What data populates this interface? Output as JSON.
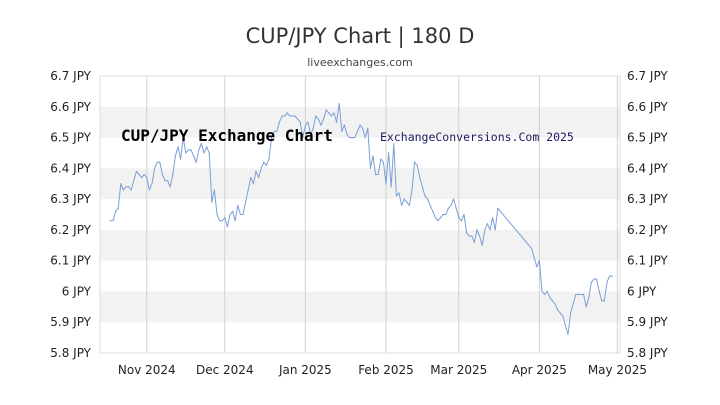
{
  "chart_data": {
    "type": "line",
    "title": "CUP/JPY Chart | 180 D",
    "subtitle": "liveexchanges.com",
    "ylim": [
      5.8,
      6.7
    ],
    "yticks": [
      {
        "value": 6.7,
        "label": "6.7 JPY"
      },
      {
        "value": 6.6,
        "label": "6.6 JPY"
      },
      {
        "value": 6.5,
        "label": "6.5 JPY"
      },
      {
        "value": 6.4,
        "label": "6.4 JPY"
      },
      {
        "value": 6.3,
        "label": "6.3 JPY"
      },
      {
        "value": 6.2,
        "label": "6.2 JPY"
      },
      {
        "value": 6.1,
        "label": "6.1 JPY"
      },
      {
        "value": 6.0,
        "label": "6 JPY"
      },
      {
        "value": 5.9,
        "label": "5.9 JPY"
      },
      {
        "value": 5.8,
        "label": "5.8 JPY"
      }
    ],
    "xticks": [
      {
        "date": "2024-11-01",
        "label": "Nov 2024"
      },
      {
        "date": "2024-12-01",
        "label": "Dec 2024"
      },
      {
        "date": "2025-01-01",
        "label": "Jan 2025"
      },
      {
        "date": "2025-02-01",
        "label": "Feb 2025"
      },
      {
        "date": "2025-03-01",
        "label": "Mar 2025"
      },
      {
        "date": "2025-04-01",
        "label": "Apr 2025"
      },
      {
        "date": "2025-05-01",
        "label": "May 2025"
      }
    ],
    "grid": true,
    "annotations": [
      "CUP/JPY Exchange Chart",
      "ExchangeConversions.Com 2025"
    ],
    "series": [
      {
        "color": "#7b9fd6",
        "points": [
          [
            "2024-10-18",
            6.23
          ],
          [
            "2024-10-19",
            6.23
          ],
          [
            "2024-10-20",
            6.26
          ],
          [
            "2024-10-21",
            6.27
          ],
          [
            "2024-10-22",
            6.35
          ],
          [
            "2024-10-23",
            6.33
          ],
          [
            "2024-10-24",
            6.34
          ],
          [
            "2024-10-25",
            6.34
          ],
          [
            "2024-10-26",
            6.33
          ],
          [
            "2024-10-27",
            6.36
          ],
          [
            "2024-10-28",
            6.39
          ],
          [
            "2024-10-29",
            6.38
          ],
          [
            "2024-10-30",
            6.37
          ],
          [
            "2024-10-31",
            6.38
          ],
          [
            "2024-11-01",
            6.37
          ],
          [
            "2024-11-02",
            6.33
          ],
          [
            "2024-11-03",
            6.35
          ],
          [
            "2024-11-04",
            6.4
          ],
          [
            "2024-11-05",
            6.42
          ],
          [
            "2024-11-06",
            6.42
          ],
          [
            "2024-11-07",
            6.38
          ],
          [
            "2024-11-08",
            6.36
          ],
          [
            "2024-11-09",
            6.36
          ],
          [
            "2024-11-10",
            6.34
          ],
          [
            "2024-11-11",
            6.38
          ],
          [
            "2024-11-12",
            6.44
          ],
          [
            "2024-11-13",
            6.47
          ],
          [
            "2024-11-14",
            6.43
          ],
          [
            "2024-11-15",
            6.5
          ],
          [
            "2024-11-16",
            6.45
          ],
          [
            "2024-11-17",
            6.46
          ],
          [
            "2024-11-18",
            6.46
          ],
          [
            "2024-11-19",
            6.44
          ],
          [
            "2024-11-20",
            6.42
          ],
          [
            "2024-11-21",
            6.46
          ],
          [
            "2024-11-22",
            6.48
          ],
          [
            "2024-11-23",
            6.45
          ],
          [
            "2024-11-24",
            6.47
          ],
          [
            "2024-11-25",
            6.45
          ],
          [
            "2024-11-26",
            6.29
          ],
          [
            "2024-11-27",
            6.33
          ],
          [
            "2024-11-28",
            6.25
          ],
          [
            "2024-11-29",
            6.23
          ],
          [
            "2024-11-30",
            6.23
          ],
          [
            "2024-12-01",
            6.24
          ],
          [
            "2024-12-02",
            6.21
          ],
          [
            "2024-12-03",
            6.25
          ],
          [
            "2024-12-04",
            6.26
          ],
          [
            "2024-12-05",
            6.23
          ],
          [
            "2024-12-06",
            6.28
          ],
          [
            "2024-12-07",
            6.25
          ],
          [
            "2024-12-08",
            6.25
          ],
          [
            "2024-12-09",
            6.29
          ],
          [
            "2024-12-10",
            6.33
          ],
          [
            "2024-12-11",
            6.37
          ],
          [
            "2024-12-12",
            6.35
          ],
          [
            "2024-12-13",
            6.39
          ],
          [
            "2024-12-14",
            6.37
          ],
          [
            "2024-12-15",
            6.4
          ],
          [
            "2024-12-16",
            6.42
          ],
          [
            "2024-12-17",
            6.41
          ],
          [
            "2024-12-18",
            6.43
          ],
          [
            "2024-12-19",
            6.5
          ],
          [
            "2024-12-20",
            6.52
          ],
          [
            "2024-12-21",
            6.52
          ],
          [
            "2024-12-22",
            6.55
          ],
          [
            "2024-12-23",
            6.57
          ],
          [
            "2024-12-24",
            6.57
          ],
          [
            "2024-12-25",
            6.58
          ],
          [
            "2024-12-26",
            6.57
          ],
          [
            "2024-12-27",
            6.57
          ],
          [
            "2024-12-28",
            6.57
          ],
          [
            "2024-12-29",
            6.56
          ],
          [
            "2024-12-30",
            6.55
          ],
          [
            "2024-12-31",
            6.5
          ],
          [
            "2025-01-01",
            6.54
          ],
          [
            "2025-01-02",
            6.55
          ],
          [
            "2025-01-03",
            6.51
          ],
          [
            "2025-01-04",
            6.53
          ],
          [
            "2025-01-05",
            6.57
          ],
          [
            "2025-01-06",
            6.56
          ],
          [
            "2025-01-07",
            6.54
          ],
          [
            "2025-01-08",
            6.56
          ],
          [
            "2025-01-09",
            6.59
          ],
          [
            "2025-01-10",
            6.58
          ],
          [
            "2025-01-11",
            6.57
          ],
          [
            "2025-01-12",
            6.58
          ],
          [
            "2025-01-13",
            6.55
          ],
          [
            "2025-01-14",
            6.61
          ],
          [
            "2025-01-15",
            6.52
          ],
          [
            "2025-01-16",
            6.54
          ],
          [
            "2025-01-17",
            6.51
          ],
          [
            "2025-01-18",
            6.5
          ],
          [
            "2025-01-19",
            6.5
          ],
          [
            "2025-01-20",
            6.5
          ],
          [
            "2025-01-21",
            6.52
          ],
          [
            "2025-01-22",
            6.54
          ],
          [
            "2025-01-23",
            6.53
          ],
          [
            "2025-01-24",
            6.5
          ],
          [
            "2025-01-25",
            6.53
          ],
          [
            "2025-01-26",
            6.4
          ],
          [
            "2025-01-27",
            6.44
          ],
          [
            "2025-01-28",
            6.38
          ],
          [
            "2025-01-29",
            6.38
          ],
          [
            "2025-01-30",
            6.43
          ],
          [
            "2025-01-31",
            6.42
          ],
          [
            "2025-02-01",
            6.35
          ],
          [
            "2025-02-02",
            6.45
          ],
          [
            "2025-02-03",
            6.34
          ],
          [
            "2025-02-04",
            6.48
          ],
          [
            "2025-02-05",
            6.31
          ],
          [
            "2025-02-06",
            6.32
          ],
          [
            "2025-02-07",
            6.28
          ],
          [
            "2025-02-08",
            6.3
          ],
          [
            "2025-02-09",
            6.29
          ],
          [
            "2025-02-10",
            6.28
          ],
          [
            "2025-02-11",
            6.33
          ],
          [
            "2025-02-12",
            6.42
          ],
          [
            "2025-02-13",
            6.41
          ],
          [
            "2025-02-14",
            6.37
          ],
          [
            "2025-02-15",
            6.34
          ],
          [
            "2025-02-16",
            6.31
          ],
          [
            "2025-02-17",
            6.3
          ],
          [
            "2025-02-18",
            6.28
          ],
          [
            "2025-02-19",
            6.26
          ],
          [
            "2025-02-20",
            6.24
          ],
          [
            "2025-02-21",
            6.23
          ],
          [
            "2025-02-22",
            6.24
          ],
          [
            "2025-02-23",
            6.25
          ],
          [
            "2025-02-24",
            6.25
          ],
          [
            "2025-02-25",
            6.27
          ],
          [
            "2025-02-26",
            6.28
          ],
          [
            "2025-02-27",
            6.3
          ],
          [
            "2025-02-28",
            6.27
          ],
          [
            "2025-03-01",
            6.24
          ],
          [
            "2025-03-02",
            6.23
          ],
          [
            "2025-03-03",
            6.25
          ],
          [
            "2025-03-04",
            6.19
          ],
          [
            "2025-03-05",
            6.18
          ],
          [
            "2025-03-06",
            6.18
          ],
          [
            "2025-03-07",
            6.16
          ],
          [
            "2025-03-08",
            6.2
          ],
          [
            "2025-03-09",
            6.18
          ],
          [
            "2025-03-10",
            6.15
          ],
          [
            "2025-03-11",
            6.2
          ],
          [
            "2025-03-12",
            6.22
          ],
          [
            "2025-03-13",
            6.2
          ],
          [
            "2025-03-14",
            6.24
          ],
          [
            "2025-03-15",
            6.2
          ],
          [
            "2025-03-16",
            6.27
          ],
          [
            "2025-03-17",
            6.26
          ],
          [
            "2025-03-29",
            6.14
          ],
          [
            "2025-03-30",
            6.11
          ],
          [
            "2025-03-31",
            6.08
          ],
          [
            "2025-04-01",
            6.1
          ],
          [
            "2025-04-02",
            6.0
          ],
          [
            "2025-04-03",
            5.99
          ],
          [
            "2025-04-04",
            6.0
          ],
          [
            "2025-04-05",
            5.98
          ],
          [
            "2025-04-06",
            5.97
          ],
          [
            "2025-04-07",
            5.96
          ],
          [
            "2025-04-08",
            5.94
          ],
          [
            "2025-04-09",
            5.93
          ],
          [
            "2025-04-10",
            5.92
          ],
          [
            "2025-04-11",
            5.89
          ],
          [
            "2025-04-12",
            5.86
          ],
          [
            "2025-04-13",
            5.93
          ],
          [
            "2025-04-14",
            5.96
          ],
          [
            "2025-04-15",
            5.99
          ],
          [
            "2025-04-16",
            5.99
          ],
          [
            "2025-04-17",
            5.99
          ],
          [
            "2025-04-18",
            5.99
          ],
          [
            "2025-04-19",
            5.95
          ],
          [
            "2025-04-20",
            5.98
          ],
          [
            "2025-04-21",
            6.03
          ],
          [
            "2025-04-22",
            6.04
          ],
          [
            "2025-04-23",
            6.04
          ],
          [
            "2025-04-24",
            6.0
          ],
          [
            "2025-04-25",
            5.97
          ],
          [
            "2025-04-26",
            5.97
          ],
          [
            "2025-04-27",
            6.03
          ],
          [
            "2025-04-28",
            6.05
          ],
          [
            "2025-04-29",
            6.05
          ]
        ]
      }
    ]
  }
}
